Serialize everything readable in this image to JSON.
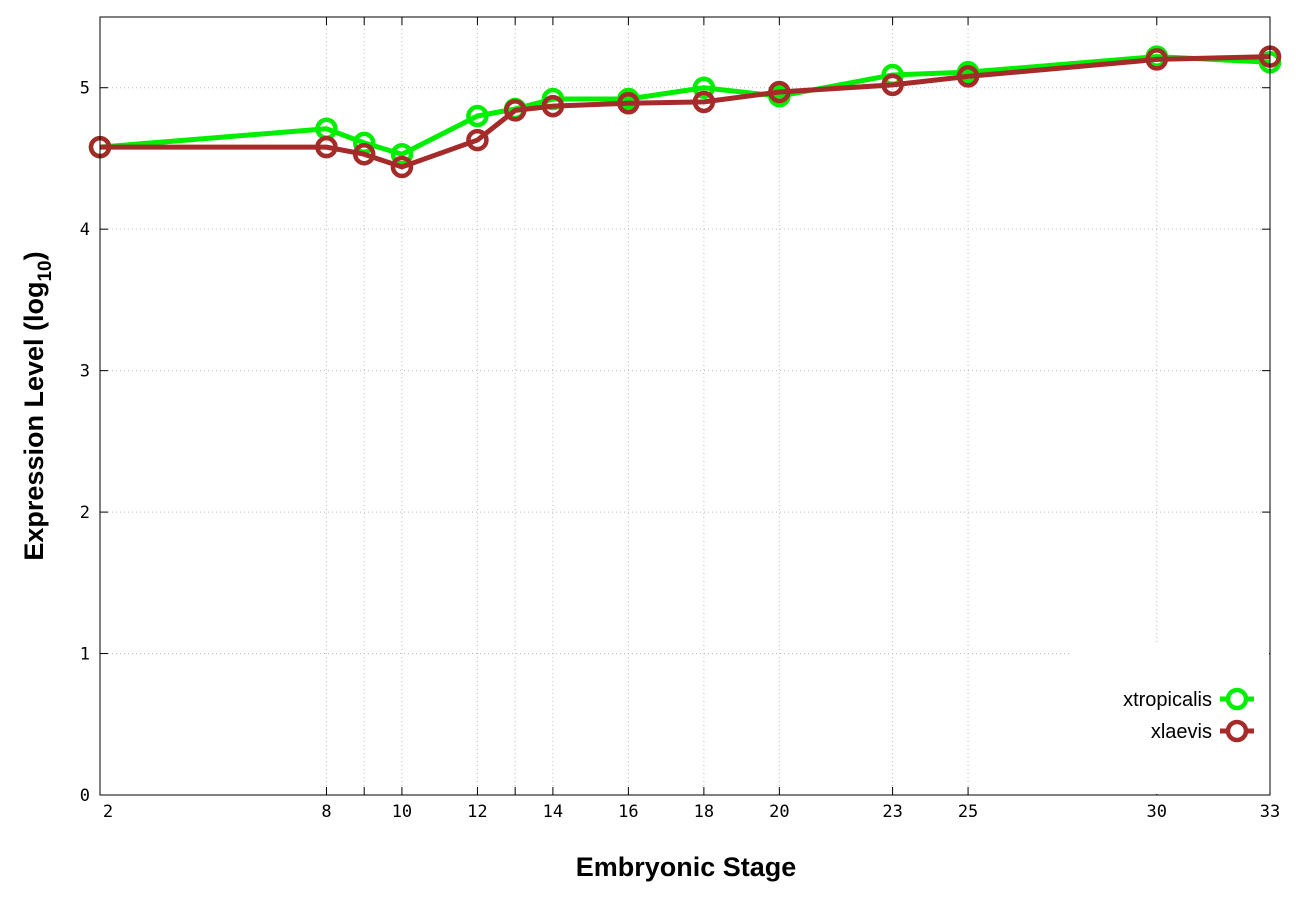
{
  "chart_data": {
    "type": "line",
    "xlabel": "Embryonic Stage",
    "ylabel": {
      "main": "Expression Level (log",
      "sub": "10",
      "end": ")"
    },
    "xlim": [
      2,
      33
    ],
    "ylim": [
      0,
      5.5
    ],
    "x_ticks": [
      2,
      8,
      10,
      12,
      14,
      16,
      18,
      20,
      23,
      25,
      30,
      33
    ],
    "x_grid": [
      2,
      8,
      9,
      10,
      12,
      13,
      14,
      16,
      18,
      20,
      23,
      25,
      30,
      33
    ],
    "y_ticks": [
      0,
      1,
      2,
      3,
      4,
      5
    ],
    "grid": true,
    "legend_position": "bottom-right",
    "x": [
      2,
      8,
      9,
      10,
      12,
      13,
      14,
      16,
      18,
      20,
      23,
      25,
      30,
      33
    ],
    "series": [
      {
        "name": "xtropicalis",
        "color": "#00ee00",
        "values": [
          4.58,
          4.71,
          4.61,
          4.53,
          4.8,
          4.85,
          4.92,
          4.92,
          5.0,
          4.94,
          5.09,
          5.11,
          5.22,
          5.18
        ]
      },
      {
        "name": "xlaevis",
        "color": "#a52a2a",
        "values": [
          4.58,
          4.58,
          4.53,
          4.44,
          4.63,
          4.84,
          4.87,
          4.89,
          4.9,
          4.97,
          5.02,
          5.08,
          5.2,
          5.22
        ]
      }
    ]
  }
}
